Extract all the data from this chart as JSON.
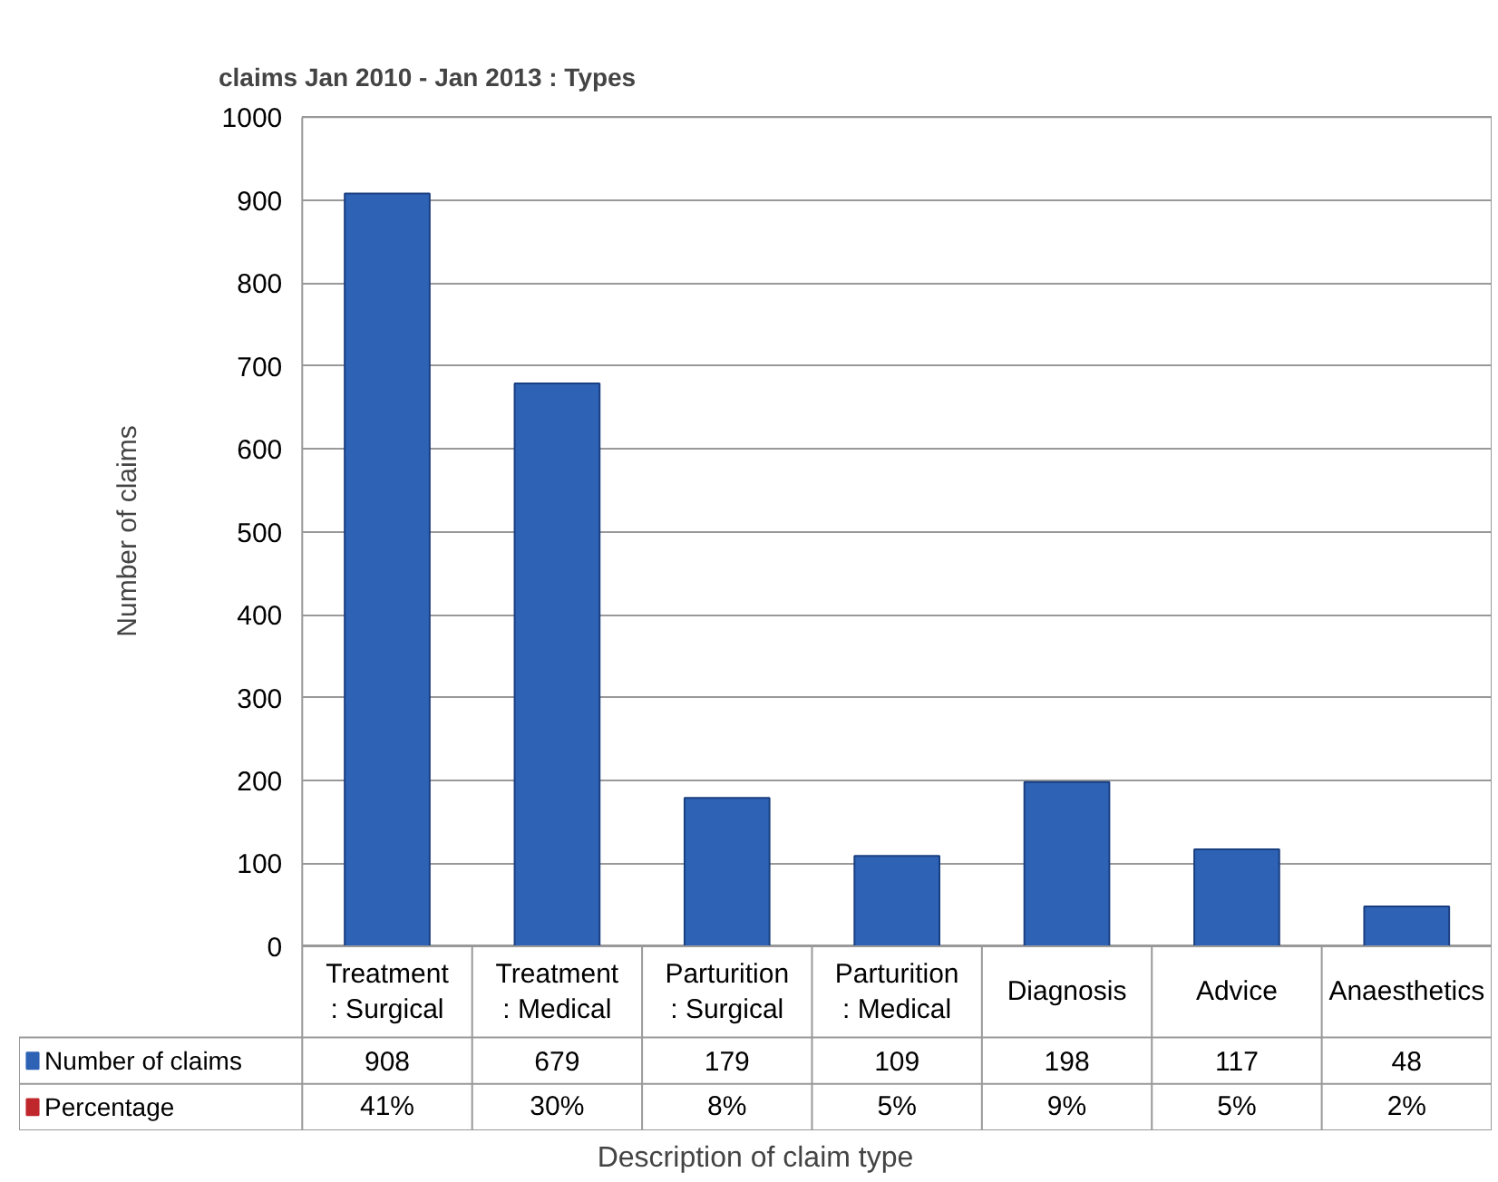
{
  "chart_data": {
    "type": "bar",
    "title": "claims Jan 2010 - Jan 2013 : Types",
    "xlabel": "Description of claim type",
    "ylabel": "Number of claims",
    "categories": [
      "Treatment\n: Surgical",
      "Treatment\n: Medical",
      "Parturition\n: Surgical",
      "Parturition\n: Medical",
      "Diagnosis",
      "Advice",
      "Anaesthetics"
    ],
    "series": [
      {
        "name": "Number of claims",
        "color": "#2e62b5",
        "values": [
          908,
          679,
          179,
          109,
          198,
          117,
          48
        ]
      },
      {
        "name": "Percentage",
        "color": "#c0272d",
        "values": [
          null,
          null,
          null,
          null,
          null,
          null,
          null
        ],
        "value_labels": [
          "41%",
          "30%",
          "8%",
          "5%",
          "9%",
          "5%",
          "2%"
        ]
      }
    ],
    "ylim": [
      0,
      1000
    ],
    "yticks": [
      0,
      100,
      200,
      300,
      400,
      500,
      600,
      700,
      800,
      900,
      1000
    ],
    "grid": "y",
    "legend": "bottom",
    "data_labels": true
  }
}
